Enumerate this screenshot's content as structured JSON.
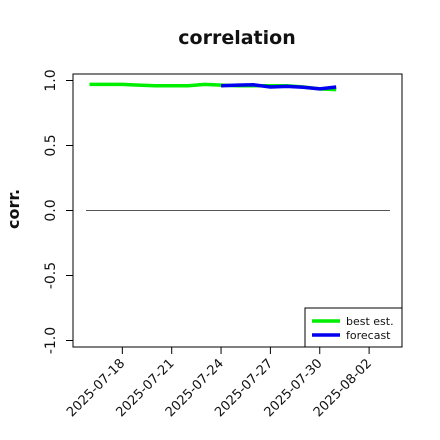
{
  "chart_data": {
    "type": "line",
    "title": "correlation",
    "ylabel": "corr.",
    "xlabel": "",
    "x_type": "date",
    "xlim": [
      "2025-07-15",
      "2025-08-04"
    ],
    "ylim": [
      -1.05,
      1.05
    ],
    "yticks": [
      -1.0,
      -0.5,
      0.0,
      0.5,
      1.0
    ],
    "ytick_labels": [
      "-1.0",
      "-0.5",
      "0.0",
      "0.5",
      "1.0"
    ],
    "xticks": [
      "2025-07-18",
      "2025-07-21",
      "2025-07-24",
      "2025-07-27",
      "2025-07-30",
      "2025-08-02"
    ],
    "xtick_colors": [
      "#111111",
      "#111111",
      "#228b22",
      "#111111",
      "#111111",
      "#111111"
    ],
    "grid": false,
    "reference_line": 0.0,
    "legend_position": "bottom-right",
    "series": [
      {
        "name": "best est.",
        "color": "#00ee00",
        "x": [
          "2025-07-16",
          "2025-07-17",
          "2025-07-18",
          "2025-07-19",
          "2025-07-20",
          "2025-07-21",
          "2025-07-22",
          "2025-07-23",
          "2025-07-24",
          "2025-07-25",
          "2025-07-26",
          "2025-07-27",
          "2025-07-28",
          "2025-07-29",
          "2025-07-30",
          "2025-07-31"
        ],
        "y": [
          0.97,
          0.97,
          0.97,
          0.965,
          0.96,
          0.96,
          0.96,
          0.97,
          0.965,
          0.96,
          0.96,
          0.96,
          0.96,
          0.95,
          0.935,
          0.93
        ]
      },
      {
        "name": "forecast",
        "color": "#0000ee",
        "x": [
          "2025-07-24",
          "2025-07-25",
          "2025-07-26",
          "2025-07-27",
          "2025-07-28",
          "2025-07-29",
          "2025-07-30",
          "2025-07-31"
        ],
        "y": [
          0.96,
          0.965,
          0.967,
          0.95,
          0.955,
          0.948,
          0.935,
          0.95
        ]
      }
    ]
  }
}
